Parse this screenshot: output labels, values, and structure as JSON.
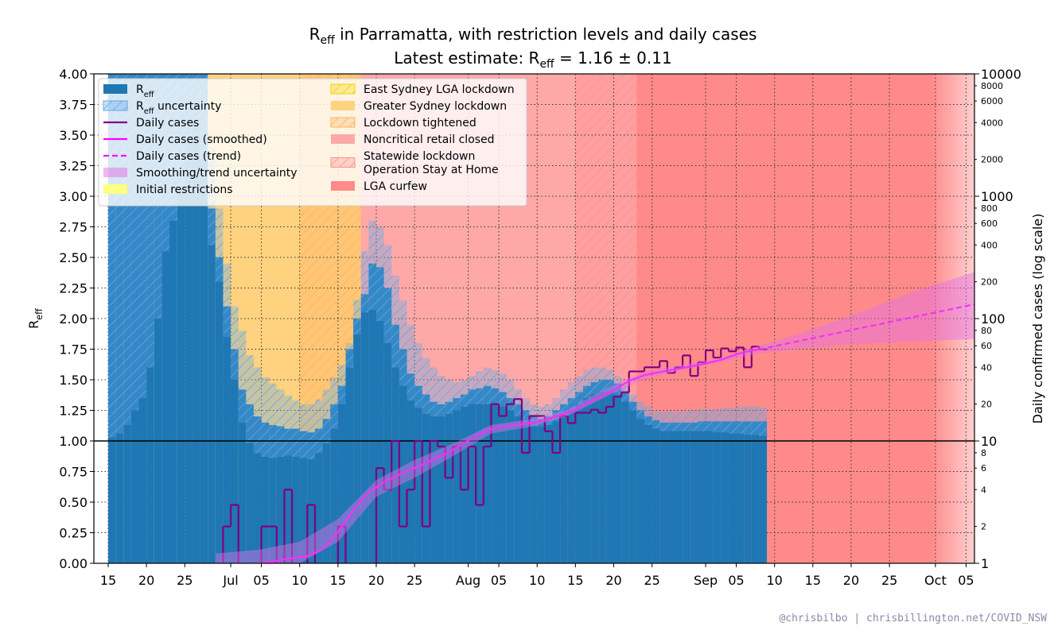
{
  "chart_data": {
    "type": "reff",
    "title": [
      "R",
      "eff",
      " in Parramatta, with restriction levels and daily cases"
    ],
    "subtitle": [
      "Latest estimate: R",
      "eff",
      " = 1.16 ± 0.11"
    ],
    "y_label": [
      "R",
      "eff"
    ],
    "y2_label": "Daily confirmed cases (log scale)",
    "footer": "@chrisbilbo | chrisbillington.net/COVID_NSW",
    "xlim": [
      -1.87,
      113.1
    ],
    "xticks": [
      {
        "value": 0,
        "label": "15"
      },
      {
        "value": 5,
        "label": "20"
      },
      {
        "value": 10,
        "label": "25"
      },
      {
        "value": 16,
        "label": "Jul"
      },
      {
        "value": 20,
        "label": "05"
      },
      {
        "value": 25,
        "label": "10"
      },
      {
        "value": 30,
        "label": "15"
      },
      {
        "value": 35,
        "label": "20"
      },
      {
        "value": 40,
        "label": "25"
      },
      {
        "value": 47,
        "label": "Aug"
      },
      {
        "value": 51,
        "label": "05"
      },
      {
        "value": 56,
        "label": "10"
      },
      {
        "value": 61,
        "label": "15"
      },
      {
        "value": 66,
        "label": "20"
      },
      {
        "value": 71,
        "label": "25"
      },
      {
        "value": 78,
        "label": "Sep"
      },
      {
        "value": 82,
        "label": "05"
      },
      {
        "value": 87,
        "label": "10"
      },
      {
        "value": 92,
        "label": "15"
      },
      {
        "value": 97,
        "label": "20"
      },
      {
        "value": 102,
        "label": "25"
      },
      {
        "value": 108,
        "label": "Oct"
      },
      {
        "value": 112,
        "label": "05"
      }
    ],
    "ylim": [
      0,
      4
    ],
    "yticks": [
      {
        "value": 0,
        "label": "0.00"
      },
      {
        "value": 0.25,
        "label": "0.25"
      },
      {
        "value": 0.5,
        "label": "0.50"
      },
      {
        "value": 0.75,
        "label": "0.75"
      },
      {
        "value": 1,
        "label": "1.00"
      },
      {
        "value": 1.25,
        "label": "1.25"
      },
      {
        "value": 1.5,
        "label": "1.50"
      },
      {
        "value": 1.75,
        "label": "1.75"
      },
      {
        "value": 2,
        "label": "2.00"
      },
      {
        "value": 2.25,
        "label": "2.25"
      },
      {
        "value": 2.5,
        "label": "2.50"
      },
      {
        "value": 2.75,
        "label": "2.75"
      },
      {
        "value": 3,
        "label": "3.00"
      },
      {
        "value": 3.25,
        "label": "3.25"
      },
      {
        "value": 3.5,
        "label": "3.50"
      },
      {
        "value": 3.75,
        "label": "3.75"
      },
      {
        "value": 4,
        "label": "4.00"
      }
    ],
    "y2lim": [
      1,
      10000
    ],
    "y2_log": true,
    "y2ticks": [
      1,
      10,
      100,
      1000,
      10000
    ],
    "y2ticks_minor": [
      2,
      4,
      6,
      8,
      20,
      40,
      60,
      80,
      200,
      400,
      600,
      800,
      2000,
      4000,
      6000,
      8000
    ],
    "grid": true,
    "hline": 1,
    "legend": "upper left",
    "days": [
      0,
      1,
      2,
      3,
      4,
      5,
      6,
      7,
      8,
      9,
      10,
      11,
      12,
      13,
      14,
      15,
      16,
      17,
      18,
      19,
      20,
      21,
      22,
      23,
      24,
      25,
      26,
      27,
      28,
      29,
      30,
      31,
      32,
      33,
      34,
      35,
      36,
      37,
      38,
      39,
      40,
      41,
      42,
      43,
      44,
      45,
      46,
      47,
      48,
      49,
      50,
      51,
      52,
      53,
      54,
      55,
      56,
      57,
      58,
      59,
      60,
      61,
      62,
      63,
      64,
      65,
      66,
      67,
      68,
      69,
      70,
      71,
      72,
      73,
      74,
      75,
      76,
      77,
      78,
      79,
      80,
      81,
      82,
      83,
      84,
      85
    ],
    "series": [
      {
        "name": [
          "R",
          "eff"
        ],
        "color": "#1f77b4",
        "values": [
          4.2,
          4.2,
          4.2,
          4.2,
          4.2,
          4.2,
          4.2,
          4.2,
          4.2,
          4.2,
          4.2,
          4.2,
          4.2,
          2.9,
          2.5,
          2.1,
          1.75,
          1.42,
          1.3,
          1.2,
          1.15,
          1.13,
          1.12,
          1.1,
          1.1,
          1.08,
          1.07,
          1.1,
          1.18,
          1.3,
          1.45,
          1.75,
          2.0,
          2.2,
          2.45,
          2.42,
          2.25,
          1.95,
          1.75,
          1.55,
          1.45,
          1.38,
          1.32,
          1.3,
          1.32,
          1.35,
          1.38,
          1.42,
          1.43,
          1.45,
          1.43,
          1.4,
          1.35,
          1.3,
          1.25,
          1.2,
          1.18,
          1.2,
          1.25,
          1.3,
          1.35,
          1.4,
          1.45,
          1.48,
          1.5,
          1.5,
          1.47,
          1.4,
          1.32,
          1.25,
          1.2,
          1.17,
          1.15,
          1.15,
          1.15,
          1.15,
          1.15,
          1.16,
          1.16,
          1.16,
          1.16,
          1.16,
          1.16,
          1.16,
          1.16,
          1.16
        ]
      },
      {
        "name": [
          "R",
          "eff",
          " uncertainty"
        ],
        "color": "#5fa8e8",
        "hatch": true,
        "lower": [
          1.03,
          1.06,
          1.13,
          1.25,
          1.35,
          1.6,
          2.0,
          2.55,
          2.8,
          3.05,
          3.45,
          3.6,
          3.3,
          2.6,
          2.3,
          1.85,
          1.5,
          1.15,
          0.98,
          0.9,
          0.87,
          0.86,
          0.87,
          0.88,
          0.87,
          0.86,
          0.85,
          0.9,
          0.98,
          1.1,
          1.3,
          1.6,
          1.87,
          2.05,
          2.07,
          1.98,
          1.8,
          1.6,
          1.45,
          1.33,
          1.27,
          1.22,
          1.2,
          1.2,
          1.22,
          1.25,
          1.28,
          1.3,
          1.3,
          1.3,
          1.3,
          1.28,
          1.25,
          1.2,
          1.15,
          1.12,
          1.12,
          1.13,
          1.16,
          1.2,
          1.25,
          1.3,
          1.35,
          1.38,
          1.4,
          1.4,
          1.38,
          1.32,
          1.25,
          1.18,
          1.13,
          1.1,
          1.08,
          1.08,
          1.08,
          1.08,
          1.08,
          1.08,
          1.08,
          1.07,
          1.07,
          1.06,
          1.06,
          1.05,
          1.05,
          1.04
        ],
        "upper": [
          4.6,
          4.6,
          4.6,
          4.6,
          4.6,
          4.6,
          4.6,
          4.6,
          4.6,
          4.6,
          4.6,
          4.6,
          4.6,
          3.4,
          2.9,
          2.45,
          2.1,
          1.9,
          1.7,
          1.6,
          1.52,
          1.47,
          1.42,
          1.37,
          1.33,
          1.3,
          1.3,
          1.34,
          1.42,
          1.52,
          1.62,
          1.8,
          2.15,
          2.55,
          2.8,
          2.75,
          2.6,
          2.35,
          2.15,
          1.95,
          1.8,
          1.68,
          1.6,
          1.53,
          1.5,
          1.48,
          1.5,
          1.53,
          1.57,
          1.6,
          1.58,
          1.55,
          1.5,
          1.42,
          1.35,
          1.3,
          1.28,
          1.3,
          1.35,
          1.42,
          1.48,
          1.53,
          1.58,
          1.6,
          1.6,
          1.58,
          1.53,
          1.45,
          1.38,
          1.32,
          1.28,
          1.25,
          1.24,
          1.24,
          1.24,
          1.25,
          1.25,
          1.26,
          1.26,
          1.26,
          1.27,
          1.27,
          1.28,
          1.28,
          1.28,
          1.27
        ]
      },
      {
        "name": "Daily cases",
        "color": "#800080",
        "axis": "y2",
        "step": true,
        "x": [
          14,
          15,
          16,
          17,
          18,
          19,
          20,
          21,
          22,
          23,
          24,
          25,
          26,
          27,
          28,
          29,
          30,
          31,
          32,
          33,
          34,
          35,
          36,
          37,
          38,
          39,
          40,
          41,
          42,
          43,
          44,
          45,
          46,
          47,
          48,
          49,
          50,
          51,
          52,
          53,
          54,
          55,
          56,
          57,
          58,
          59,
          60,
          61,
          62,
          63,
          64,
          65,
          66,
          67,
          68,
          69,
          70,
          71,
          72,
          73,
          74,
          75,
          76,
          77,
          78,
          79,
          80,
          81,
          82,
          83,
          84,
          85
        ],
        "values": [
          0,
          2,
          3,
          0,
          0,
          0,
          2,
          2,
          0,
          4,
          0,
          0,
          3,
          0,
          0,
          0,
          2,
          0,
          0,
          0,
          0,
          6,
          4,
          10,
          2,
          4,
          10,
          2,
          10,
          9,
          5,
          9,
          4,
          9,
          3,
          9,
          20,
          16,
          20,
          22,
          8,
          16,
          16,
          12,
          8,
          16,
          14,
          17,
          17,
          18,
          17,
          19,
          23,
          25,
          37,
          37,
          40,
          40,
          45,
          36,
          40,
          50,
          34,
          44,
          55,
          48,
          57,
          54,
          58,
          40,
          59,
          56
        ]
      },
      {
        "name": "Daily cases (smoothed)",
        "color": "#ff00ff",
        "axis": "y2",
        "x": [
          20,
          22,
          24,
          26,
          28,
          30,
          32,
          34,
          36,
          38,
          40,
          42,
          44,
          46,
          48,
          50,
          52,
          54,
          56,
          58,
          60,
          62,
          64,
          66,
          68,
          70,
          72,
          74,
          76,
          78,
          80,
          82,
          84,
          85
        ],
        "values": [
          1.0,
          1.05,
          1.1,
          1.15,
          1.3,
          1.8,
          2.7,
          3.8,
          4.6,
          5.3,
          6.0,
          6.8,
          7.8,
          9.2,
          11,
          12.5,
          13.2,
          13.7,
          14.2,
          15.5,
          17,
          19.5,
          22.5,
          26,
          31,
          34.5,
          36.5,
          38.5,
          40.5,
          43,
          46,
          51,
          55,
          56
        ]
      },
      {
        "name": "Daily cases (trend)",
        "color": "#ff00ff",
        "axis": "y2",
        "dashed": true,
        "x": [
          85,
          113.1
        ],
        "values": [
          56,
          131
        ]
      },
      {
        "name": "Smoothing/trend uncertainty",
        "color": "#e070e8",
        "axis": "y2",
        "x": [
          14,
          20,
          25,
          30,
          35,
          40,
          45,
          50,
          55,
          60,
          65,
          70,
          75,
          80,
          85,
          90,
          95,
          100,
          105,
          113.1
        ],
        "lower": [
          0.7,
          0.8,
          1.0,
          1.5,
          3.5,
          5,
          7.5,
          11.5,
          13,
          16,
          23,
          32,
          38,
          44,
          52,
          56,
          60,
          63,
          65,
          68
        ],
        "upper": [
          1.2,
          1.3,
          1.5,
          2.3,
          4.8,
          7,
          9.5,
          13.5,
          15,
          18,
          27,
          37,
          42,
          48,
          60,
          75,
          95,
          125,
          165,
          240
        ]
      }
    ],
    "restrictions": [
      {
        "name": [
          "Initial restrictions"
        ],
        "color": "#ffff80",
        "start": 2
      },
      {
        "name": [
          "East Sydney LGA lockdown"
        ],
        "color": "#f5d400",
        "hatch": true,
        "start": 10
      },
      {
        "name": [
          "Greater Sydney lockdown"
        ],
        "color": "#ffd280",
        "start": 11
      },
      {
        "name": [
          "Lockdown tightened"
        ],
        "color": "#ffb060",
        "hatch": true,
        "start": 25
      },
      {
        "name": [
          "Noncritical retail closed"
        ],
        "color": "#ffa8a8",
        "start": 33
      },
      {
        "name": [
          "Statewide lockdown",
          "Operation Stay at Home"
        ],
        "color": "#ff9090",
        "hatch": true,
        "start": 61
      },
      {
        "name": [
          "LGA curfew"
        ],
        "color": "#ff8a8a",
        "start": 69
      }
    ]
  }
}
